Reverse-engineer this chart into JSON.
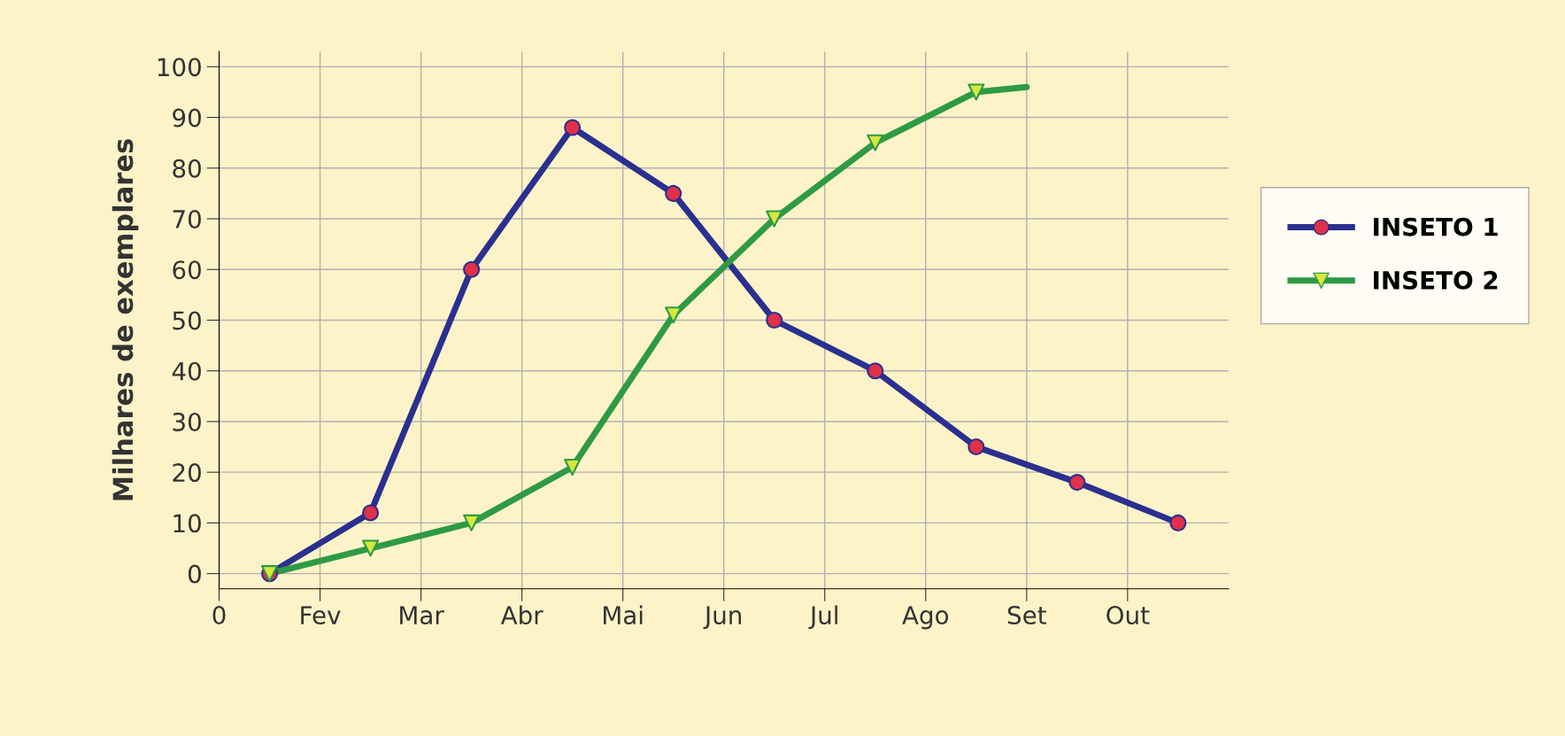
{
  "chart_data": {
    "type": "line",
    "ylabel": "Milhares de exemplares",
    "categories": [
      "0",
      null,
      "Fev",
      null,
      "Mar",
      null,
      "Abr",
      null,
      "Mai",
      null,
      "Jun",
      null,
      "Jul",
      null,
      "Ago",
      null,
      "Set",
      null,
      "Out",
      null
    ],
    "ylim": [
      -3,
      103
    ],
    "yticks": [
      0,
      10,
      20,
      30,
      40,
      50,
      60,
      70,
      80,
      90,
      100
    ],
    "grid": true,
    "legend": "right",
    "series": [
      {
        "name": "INSETO 1",
        "color": "#2b2f8f",
        "marker": "circle",
        "colors": [
          null,
          "#e0304a",
          null,
          "#e0304a",
          null,
          "#e0304a",
          null,
          "#e0304a",
          null,
          "#e0304a",
          null,
          "#e0304a",
          null,
          "#e0304a",
          null,
          "#e0304a",
          null,
          "#e0304a",
          null,
          "#e0304a"
        ],
        "values": [
          null,
          0,
          null,
          12,
          null,
          60,
          null,
          88,
          null,
          75,
          null,
          50,
          null,
          40,
          null,
          25,
          null,
          18,
          null,
          10
        ]
      },
      {
        "name": "INSETO 2",
        "color": "#2e9a44",
        "marker": "triangle",
        "colors": [
          null,
          "#d6e83a",
          null,
          "#d6e83a",
          null,
          "#d6e83a",
          null,
          "#d6e83a",
          null,
          "#d6e83a",
          null,
          "#d6e83a",
          null,
          "#d6e83a",
          null,
          "#d6e83a",
          null,
          null,
          null,
          null
        ],
        "values": [
          null,
          0,
          null,
          5,
          null,
          10,
          null,
          21,
          null,
          51,
          null,
          70,
          null,
          85,
          null,
          95,
          96,
          null,
          null,
          null
        ]
      }
    ]
  }
}
